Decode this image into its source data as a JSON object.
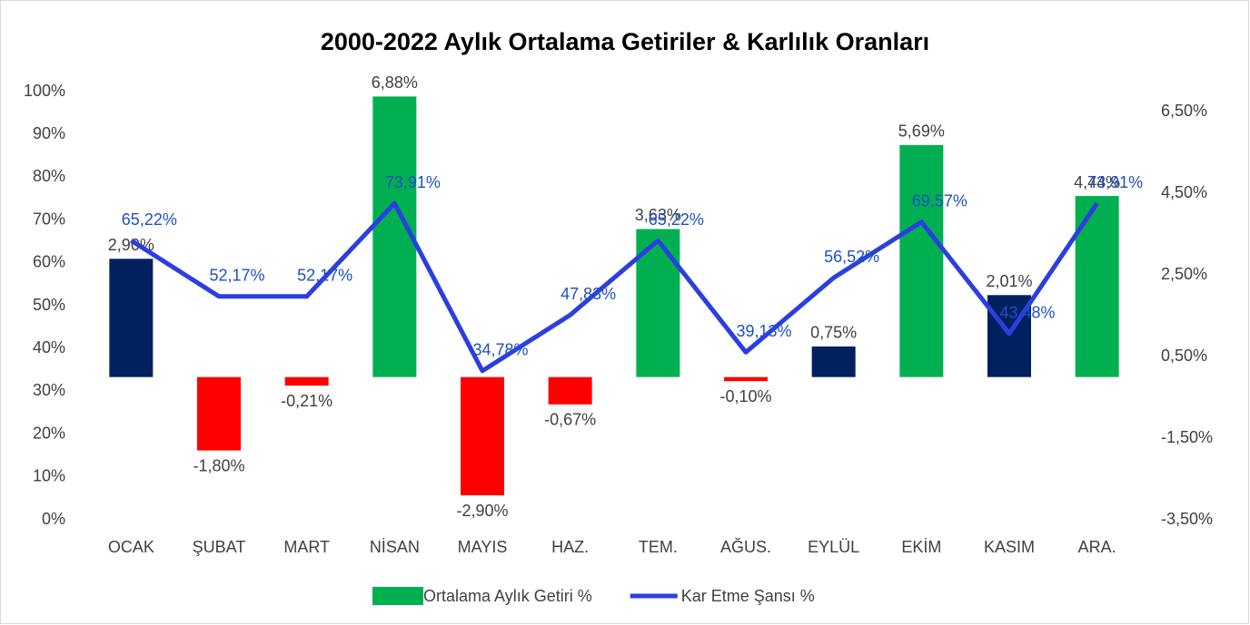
{
  "chart_data": {
    "type": "bar-line",
    "title": "2000-2022 Aylık Ortalama Getiriler & Karlılık Oranları",
    "categories": [
      "OCAK",
      "ŞUBAT",
      "MART",
      "NİSAN",
      "MAYIS",
      "HAZ.",
      "TEM.",
      "AĞUS.",
      "EYLÜL",
      "EKİM",
      "KASIM",
      "ARA."
    ],
    "series": [
      {
        "name": "Ortalama Aylık Getiri %",
        "type": "bar",
        "axis": "y2",
        "color": "#00b050",
        "colors": [
          "#002060",
          "#ff0000",
          "#ff0000",
          "#00b050",
          "#ff0000",
          "#ff0000",
          "#00b050",
          "#ff0000",
          "#002060",
          "#00b050",
          "#002060",
          "#00b050"
        ],
        "values": [
          2.9,
          -1.8,
          -0.21,
          6.88,
          -2.9,
          -0.67,
          3.63,
          -0.1,
          0.75,
          5.69,
          2.01,
          4.44
        ],
        "value_labels": [
          "2,90%",
          "-1,80%",
          "-0,21%",
          "6,88%",
          "-2,90%",
          "-0,67%",
          "3,63%",
          "-0,10%",
          "0,75%",
          "5,69%",
          "2,01%",
          "4,44%"
        ]
      },
      {
        "name": "Kar Etme Şansı %",
        "type": "line",
        "axis": "y",
        "color": "#2b3fe0",
        "values": [
          65.22,
          52.17,
          52.17,
          73.91,
          34.78,
          47.83,
          65.22,
          39.13,
          56.52,
          69.57,
          43.48,
          73.91
        ],
        "value_labels": [
          "65,22%",
          "52,17%",
          "52,17%",
          "73,91%",
          "34,78%",
          "47,83%",
          "65,22%",
          "39,13%",
          "56,52%",
          "69,57%",
          "43,48%",
          "73,91%"
        ]
      }
    ],
    "ylim": [
      0,
      100
    ],
    "yticks": [
      {
        "value": 0,
        "label": "0%"
      },
      {
        "value": 10,
        "label": "10%"
      },
      {
        "value": 20,
        "label": "20%"
      },
      {
        "value": 30,
        "label": "30%"
      },
      {
        "value": 40,
        "label": "40%"
      },
      {
        "value": 50,
        "label": "50%"
      },
      {
        "value": 60,
        "label": "60%"
      },
      {
        "value": 70,
        "label": "70%"
      },
      {
        "value": 80,
        "label": "80%"
      },
      {
        "value": 90,
        "label": "90%"
      },
      {
        "value": 100,
        "label": "100%"
      }
    ],
    "y2lim": [
      -3.5,
      7.0
    ],
    "y2ticks": [
      {
        "value": -3.5,
        "label": "-3,50%"
      },
      {
        "value": -1.5,
        "label": "-1,50%"
      },
      {
        "value": 0.5,
        "label": "0,50%"
      },
      {
        "value": 2.5,
        "label": "2,50%"
      },
      {
        "value": 4.5,
        "label": "4,50%"
      },
      {
        "value": 6.5,
        "label": "6,50%"
      }
    ],
    "legend": "bottom"
  }
}
